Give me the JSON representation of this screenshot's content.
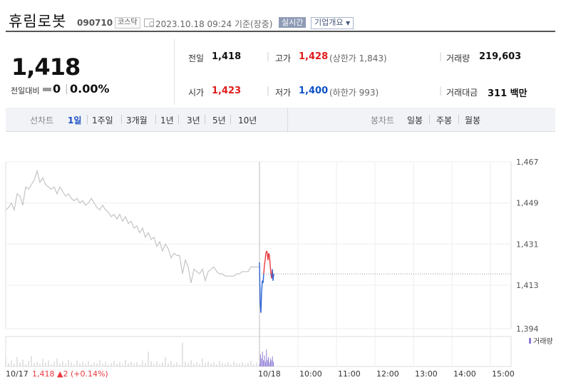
{
  "header": {
    "name": "휴림로봇",
    "code": "090710",
    "market": "코스닥",
    "datetime": "2023.10.18 09:24 기준(장중)",
    "realtime": "실시간",
    "overview_btn": "기업개요"
  },
  "quote": {
    "price": "1,418",
    "change_label": "전일대비",
    "change": "0",
    "change_pct": "0.00%",
    "prev_label": "전일",
    "prev": "1,418",
    "open_label": "시가",
    "open": "1,423",
    "high_label": "고가",
    "high": "1,428",
    "upper_limit": "(상한가 1,843)",
    "low_label": "저가",
    "low": "1,400",
    "lower_limit": "(하한가 993)",
    "volume_label": "거래량",
    "volume": "219,603",
    "amount_label": "거래대금",
    "amount": "311 백만"
  },
  "tabs": {
    "line_label": "선차트",
    "periods": [
      "1일",
      "1주일",
      "3개월",
      "1년",
      "3년",
      "5년",
      "10년"
    ],
    "candle_label": "봉차트",
    "candles": [
      "일봉",
      "주봉",
      "월봉"
    ]
  },
  "chart_data": {
    "type": "line",
    "ylim": [
      1394,
      1467
    ],
    "yticks": [
      1467,
      1449,
      1431,
      1413,
      1394
    ],
    "reference_price": 1418,
    "legend": "거래량",
    "colors": {
      "prev_day": "#c8c8c8",
      "up": "#e8393e",
      "down": "#2b63d6",
      "volume_prev": "#c8c8c8",
      "volume_today": "#8f7bd6",
      "ref_line": "#999999"
    },
    "xlabels": [
      "10/18",
      "10:00",
      "11:00",
      "12:00",
      "13:00",
      "14:00",
      "15:00"
    ],
    "footer": {
      "date": "10/17",
      "price": "1,418",
      "arrow": "▲",
      "change": "2",
      "pct": "(+0.14%)"
    },
    "series": [
      {
        "x": [
          0,
          4,
          8,
          12,
          16,
          20,
          24,
          28,
          32,
          36,
          40,
          44,
          48,
          52,
          56,
          60,
          64,
          68,
          72,
          76,
          80,
          84,
          88,
          92,
          96,
          100,
          104,
          108,
          112,
          116,
          120,
          124,
          128,
          132,
          136,
          140,
          144,
          148,
          152,
          156,
          160,
          164,
          168,
          172,
          176,
          180,
          184,
          188,
          192,
          196,
          200,
          204,
          208,
          212,
          216,
          220,
          224,
          228,
          232,
          236,
          240,
          244,
          248,
          252,
          256,
          260,
          264,
          268,
          272,
          276,
          280,
          284,
          288,
          292,
          296,
          300,
          304,
          308,
          312,
          316,
          320,
          324,
          328,
          332,
          336,
          340,
          344,
          348,
          352,
          356
        ],
        "values": [
          1446,
          1447,
          1449,
          1446,
          1453,
          1452,
          1448,
          1456,
          1455,
          1457,
          1459,
          1463,
          1458,
          1460,
          1457,
          1456,
          1455,
          1456,
          1453,
          1456,
          1454,
          1452,
          1453,
          1451,
          1450,
          1451,
          1449,
          1450,
          1448,
          1449,
          1451,
          1449,
          1447,
          1446,
          1448,
          1446,
          1445,
          1443,
          1444,
          1442,
          1444,
          1441,
          1443,
          1440,
          1441,
          1438,
          1439,
          1436,
          1438,
          1434,
          1436,
          1433,
          1434,
          1430,
          1432,
          1428,
          1431,
          1429,
          1425,
          1427,
          1426,
          1426,
          1418,
          1424,
          1421,
          1414,
          1420,
          1419,
          1418,
          1420,
          1415,
          1419,
          1420,
          1421,
          1419,
          1418,
          1418,
          1417,
          1417,
          1417,
          1417,
          1418,
          1418,
          1419,
          1419,
          1419,
          1421,
          1421,
          1421,
          1421
        ]
      },
      {
        "x": [
          0,
          1,
          2,
          3,
          4,
          5,
          6,
          7,
          8,
          9,
          10,
          11,
          12,
          13,
          14,
          15,
          16,
          17,
          18,
          19,
          20
        ],
        "values": [
          1423,
          1406,
          1401,
          1410,
          1415,
          1414,
          1418,
          1422,
          1424,
          1427,
          1428,
          1427,
          1424,
          1427,
          1426,
          1422,
          1418,
          1416,
          1420,
          1415,
          1418
        ]
      }
    ],
    "volume": {
      "prev_day": [
        12,
        5,
        9,
        4,
        14,
        6,
        10,
        3,
        8,
        15,
        5,
        7,
        4,
        11,
        6,
        9,
        3,
        7,
        12,
        5,
        8,
        4,
        10,
        6,
        3,
        9,
        5,
        7,
        4,
        8,
        3,
        6,
        5,
        9,
        4,
        7,
        3,
        5,
        8,
        4,
        6,
        3,
        10,
        5,
        7,
        4,
        6,
        3,
        9,
        5,
        22,
        8,
        4,
        7,
        3,
        6,
        14,
        5,
        8,
        4,
        6,
        3,
        35,
        7,
        5,
        9,
        4,
        6,
        3,
        12,
        5,
        7,
        4,
        6,
        3,
        8,
        5,
        4,
        6,
        3,
        7,
        5,
        4,
        6,
        3,
        5,
        8,
        4,
        6,
        3
      ],
      "today": [
        4,
        18,
        12,
        22,
        9,
        16,
        7,
        25,
        10,
        14,
        6,
        12,
        9,
        15,
        7
      ]
    }
  }
}
